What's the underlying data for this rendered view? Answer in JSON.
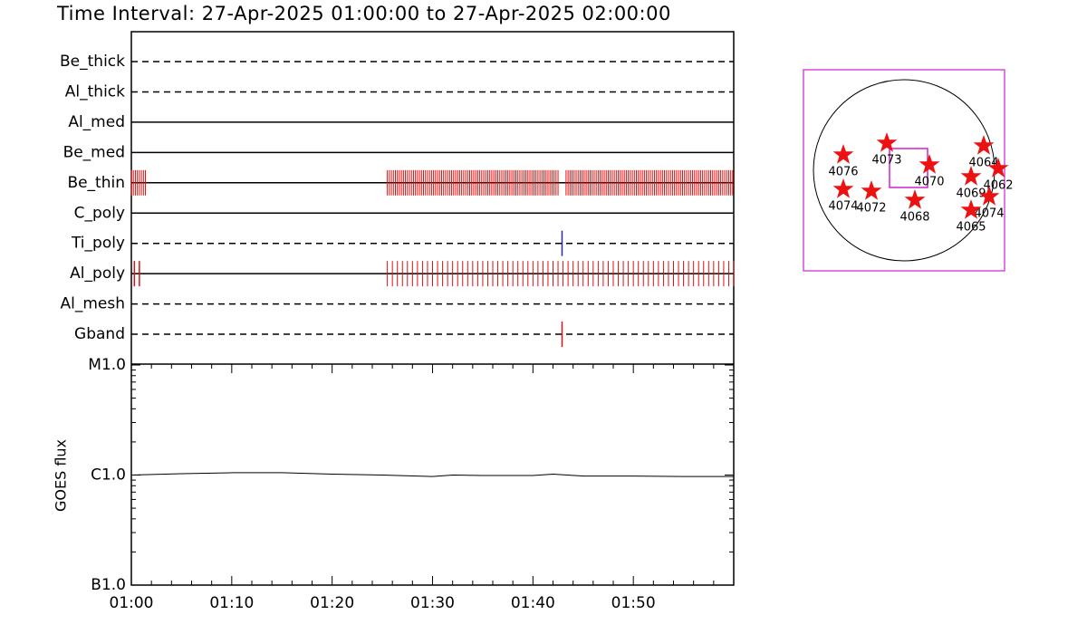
{
  "title": "Time Interval: 27-Apr-2025 01:00:00 to 27-Apr-2025 02:00:00",
  "chart_data": [
    {
      "type": "timeline",
      "xlim": [
        0,
        60
      ],
      "rows": [
        {
          "label": "Be_thick",
          "style": "dashed"
        },
        {
          "label": "Al_thick",
          "style": "dashed"
        },
        {
          "label": "Al_med",
          "style": "solid"
        },
        {
          "label": "Be_med",
          "style": "solid"
        },
        {
          "label": "Be_thin",
          "style": "solid",
          "color": "#dd1111",
          "blocks": [
            {
              "start": 0,
              "end": 1.4,
              "cadence": 0.2
            },
            {
              "start": 25.5,
              "end": 42.6,
              "cadence": 0.2
            },
            {
              "start": 43.3,
              "end": 60,
              "cadence": 0.2
            }
          ]
        },
        {
          "label": "C_poly",
          "style": "solid"
        },
        {
          "label": "Ti_poly",
          "style": "dashed",
          "color": "#2a2a9a",
          "exposures": [
            42.9
          ]
        },
        {
          "label": "Al_poly",
          "style": "solid",
          "color": "#dd1111",
          "exposures": [
            0.3,
            0.8
          ],
          "blocks": [
            {
              "start": 25.5,
              "end": 60,
              "cadence": 0.5
            }
          ]
        },
        {
          "label": "Al_mesh",
          "style": "dashed"
        },
        {
          "label": "Gband",
          "style": "dashed",
          "color": "#dd1111",
          "exposures": [
            42.9
          ]
        }
      ]
    },
    {
      "type": "line",
      "ylabel": "GOES flux",
      "log_scale": true,
      "color": "#000000",
      "xlim": [
        0,
        60
      ],
      "xticks": [
        {
          "value": 0,
          "label": "01:00"
        },
        {
          "value": 10,
          "label": "01:10"
        },
        {
          "value": 20,
          "label": "01:20"
        },
        {
          "value": 30,
          "label": "01:30"
        },
        {
          "value": 40,
          "label": "01:40"
        },
        {
          "value": 50,
          "label": "01:50"
        }
      ],
      "ylim": [
        1e-07,
        1e-05
      ],
      "yticks": [
        {
          "value": 1e-05,
          "label": "M1.0"
        },
        {
          "value": 1e-06,
          "label": "C1.0"
        },
        {
          "value": 1e-07,
          "label": "B1.0"
        }
      ],
      "x": [
        0,
        5,
        10,
        15,
        20,
        25,
        30,
        32,
        35,
        40,
        42,
        45,
        50,
        55,
        60
      ],
      "values": [
        1e-06,
        1.03e-06,
        1.05e-06,
        1.05e-06,
        1.02e-06,
        1e-06,
        9.7e-07,
        1e-06,
        9.9e-07,
        9.9e-07,
        1.02e-06,
        9.8e-07,
        9.8e-07,
        9.7e-07,
        9.7e-07
      ]
    },
    {
      "type": "map",
      "xlim": [
        -1110,
        1110
      ],
      "ylim": [
        -1110,
        1110
      ],
      "solar_radius": 1000,
      "fov": {
        "x": 50,
        "y": 25,
        "width": 420,
        "height": 430
      },
      "regions": [
        {
          "name": "4076",
          "x": -670,
          "y": 170
        },
        {
          "name": "4073",
          "x": -190,
          "y": 300
        },
        {
          "name": "4070",
          "x": 280,
          "y": 60
        },
        {
          "name": "4064",
          "x": 880,
          "y": 270
        },
        {
          "name": "4062",
          "x": 1040,
          "y": 20
        },
        {
          "name": "4069",
          "x": 740,
          "y": -70
        },
        {
          "name": "4074",
          "x": 940,
          "y": -290
        },
        {
          "name": "4065",
          "x": 740,
          "y": -440
        },
        {
          "name": "4068",
          "x": 120,
          "y": -330
        },
        {
          "name": "4072",
          "x": -360,
          "y": -230
        },
        {
          "name": "4074",
          "x": -670,
          "y": -210
        }
      ]
    }
  ]
}
